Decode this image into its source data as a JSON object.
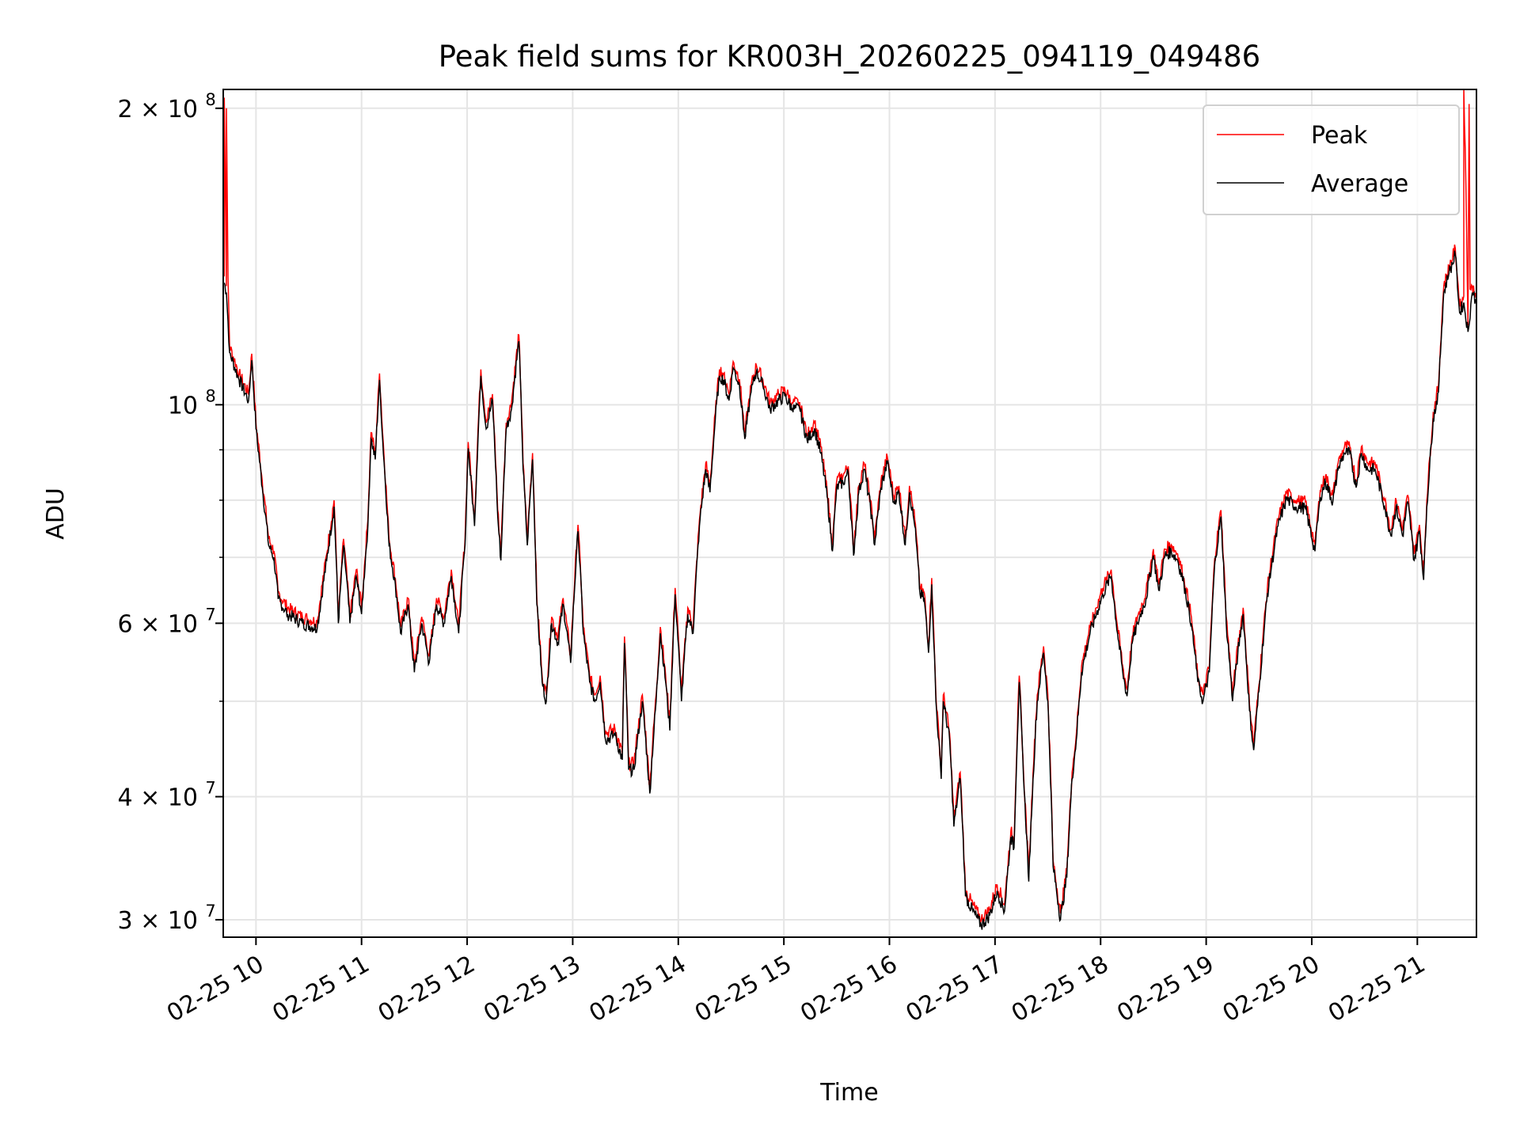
{
  "chart_data": {
    "type": "line",
    "title": "Peak field sums for KR003H_20260225_094119_049486",
    "xlabel": "Time",
    "ylabel": "ADU",
    "yscale": "log",
    "x_units": "hours on 2026-02-25",
    "y_units": "ADU (values listed in units of 1e7)",
    "xlim": [
      9.69,
      21.56
    ],
    "ylim": [
      28.8,
      209
    ],
    "grid": true,
    "legend_position": "top-right",
    "x_ticks": [
      {
        "value": 10,
        "label": "02-25 10"
      },
      {
        "value": 11,
        "label": "02-25 11"
      },
      {
        "value": 12,
        "label": "02-25 12"
      },
      {
        "value": 13,
        "label": "02-25 13"
      },
      {
        "value": 14,
        "label": "02-25 14"
      },
      {
        "value": 15,
        "label": "02-25 15"
      },
      {
        "value": 16,
        "label": "02-25 16"
      },
      {
        "value": 17,
        "label": "02-25 17"
      },
      {
        "value": 18,
        "label": "02-25 18"
      },
      {
        "value": 19,
        "label": "02-25 19"
      },
      {
        "value": 20,
        "label": "02-25 20"
      },
      {
        "value": 21,
        "label": "02-25 21"
      }
    ],
    "y_major_ticks": [
      {
        "value": 30,
        "mant": "3 × 10",
        "exp": "7"
      },
      {
        "value": 40,
        "mant": "4 × 10",
        "exp": "7"
      },
      {
        "value": 60,
        "mant": "6 × 10",
        "exp": "7"
      },
      {
        "value": 100,
        "mant": "10",
        "exp": "8"
      },
      {
        "value": 200,
        "mant": "2 × 10",
        "exp": "8"
      }
    ],
    "y_minor_ticks": [
      50,
      70,
      80,
      90
    ],
    "series": [
      {
        "name": "Peak",
        "color": "#ff0000",
        "derived_from": "Average",
        "factor": 1.015,
        "overrides": [
          [
            9.7,
            205
          ],
          [
            9.72,
            200
          ],
          [
            9.735,
            135
          ],
          [
            21.435,
            128
          ],
          [
            21.44,
            210
          ],
          [
            21.49,
            202
          ],
          [
            21.5,
            131
          ]
        ]
      },
      {
        "name": "Average",
        "color": "#000000",
        "points": [
          [
            9.7,
            133
          ],
          [
            9.72,
            130
          ],
          [
            9.75,
            113
          ],
          [
            9.84,
            106
          ],
          [
            9.93,
            101
          ],
          [
            9.96,
            111
          ],
          [
            10.0,
            94.5
          ],
          [
            10.06,
            82.4
          ],
          [
            10.12,
            72
          ],
          [
            10.17,
            70
          ],
          [
            10.21,
            63.5
          ],
          [
            10.3,
            61.3
          ],
          [
            10.44,
            60
          ],
          [
            10.58,
            59.3
          ],
          [
            10.67,
            69.5
          ],
          [
            10.74,
            78.8
          ],
          [
            10.78,
            60
          ],
          [
            10.83,
            72
          ],
          [
            10.89,
            60
          ],
          [
            10.95,
            67
          ],
          [
            11.0,
            61.3
          ],
          [
            11.06,
            75.3
          ],
          [
            11.09,
            92.3
          ],
          [
            11.13,
            88
          ],
          [
            11.17,
            106
          ],
          [
            11.2,
            92
          ],
          [
            11.26,
            72
          ],
          [
            11.32,
            65.7
          ],
          [
            11.37,
            58.6
          ],
          [
            11.44,
            62.7
          ],
          [
            11.5,
            53.5
          ],
          [
            11.57,
            60
          ],
          [
            11.64,
            54.7
          ],
          [
            11.71,
            62.7
          ],
          [
            11.78,
            60
          ],
          [
            11.85,
            67
          ],
          [
            11.92,
            58.6
          ],
          [
            11.98,
            72
          ],
          [
            12.01,
            90.3
          ],
          [
            12.07,
            75.3
          ],
          [
            12.13,
            107
          ],
          [
            12.18,
            94.5
          ],
          [
            12.24,
            101
          ],
          [
            12.29,
            77
          ],
          [
            12.32,
            69.5
          ],
          [
            12.37,
            94.5
          ],
          [
            12.42,
            99
          ],
          [
            12.49,
            116
          ],
          [
            12.53,
            86
          ],
          [
            12.57,
            72
          ],
          [
            12.62,
            88
          ],
          [
            12.66,
            62.7
          ],
          [
            12.71,
            52.3
          ],
          [
            12.75,
            50
          ],
          [
            12.8,
            60
          ],
          [
            12.86,
            57.3
          ],
          [
            12.91,
            62.7
          ],
          [
            12.98,
            54.7
          ],
          [
            13.05,
            74.4
          ],
          [
            13.1,
            58.6
          ],
          [
            13.16,
            52.3
          ],
          [
            13.21,
            50
          ],
          [
            13.26,
            52.3
          ],
          [
            13.31,
            45.7
          ],
          [
            13.4,
            46.2
          ],
          [
            13.47,
            43.6
          ],
          [
            13.49,
            57.3
          ],
          [
            13.53,
            42.6
          ],
          [
            13.58,
            42.6
          ],
          [
            13.66,
            50
          ],
          [
            13.73,
            40.3
          ],
          [
            13.79,
            50
          ],
          [
            13.83,
            58.6
          ],
          [
            13.88,
            52.3
          ],
          [
            13.92,
            46.7
          ],
          [
            13.97,
            64.2
          ],
          [
            14.03,
            50
          ],
          [
            14.09,
            61.3
          ],
          [
            14.14,
            58.6
          ],
          [
            14.2,
            75.3
          ],
          [
            14.26,
            86
          ],
          [
            14.3,
            81.5
          ],
          [
            14.35,
            96.6
          ],
          [
            14.39,
            107
          ],
          [
            14.43,
            106
          ],
          [
            14.48,
            101
          ],
          [
            14.52,
            109
          ],
          [
            14.58,
            104.6
          ],
          [
            14.63,
            92.3
          ],
          [
            14.69,
            103
          ],
          [
            14.74,
            108
          ],
          [
            14.8,
            104.6
          ],
          [
            14.87,
            99
          ],
          [
            14.95,
            101
          ],
          [
            15.01,
            102
          ],
          [
            15.08,
            99
          ],
          [
            15.15,
            99
          ],
          [
            15.22,
            92
          ],
          [
            15.29,
            94.5
          ],
          [
            15.35,
            89.3
          ],
          [
            15.41,
            80.6
          ],
          [
            15.46,
            71
          ],
          [
            15.5,
            82.4
          ],
          [
            15.56,
            83.4
          ],
          [
            15.61,
            85.3
          ],
          [
            15.66,
            70.3
          ],
          [
            15.71,
            81.5
          ],
          [
            15.76,
            86
          ],
          [
            15.82,
            78.8
          ],
          [
            15.86,
            72
          ],
          [
            15.92,
            82.4
          ],
          [
            15.98,
            87.3
          ],
          [
            16.04,
            79.7
          ],
          [
            16.09,
            81.5
          ],
          [
            16.15,
            72
          ],
          [
            16.19,
            81.5
          ],
          [
            16.24,
            75.3
          ],
          [
            16.29,
            64.2
          ],
          [
            16.33,
            63.5
          ],
          [
            16.37,
            56
          ],
          [
            16.4,
            65.7
          ],
          [
            16.44,
            50
          ],
          [
            16.49,
            41.7
          ],
          [
            16.51,
            50
          ],
          [
            16.57,
            45.7
          ],
          [
            16.61,
            37.3
          ],
          [
            16.67,
            41.7
          ],
          [
            16.72,
            31.7
          ],
          [
            16.79,
            30.6
          ],
          [
            16.87,
            29.6
          ],
          [
            16.95,
            30.3
          ],
          [
            17.02,
            32.1
          ],
          [
            17.09,
            30.6
          ],
          [
            17.15,
            36.4
          ],
          [
            17.18,
            35.5
          ],
          [
            17.23,
            52.3
          ],
          [
            17.27,
            41.7
          ],
          [
            17.32,
            32.8
          ],
          [
            17.36,
            41.7
          ],
          [
            17.4,
            50
          ],
          [
            17.46,
            56
          ],
          [
            17.5,
            50
          ],
          [
            17.55,
            34
          ],
          [
            17.62,
            30
          ],
          [
            17.68,
            33.2
          ],
          [
            17.73,
            41.7
          ],
          [
            17.77,
            45.7
          ],
          [
            17.82,
            53.5
          ],
          [
            17.9,
            58.6
          ],
          [
            17.96,
            61.3
          ],
          [
            18.02,
            64.2
          ],
          [
            18.1,
            67
          ],
          [
            18.16,
            58.6
          ],
          [
            18.21,
            53.5
          ],
          [
            18.25,
            50.6
          ],
          [
            18.3,
            57.3
          ],
          [
            18.35,
            60
          ],
          [
            18.43,
            63.5
          ],
          [
            18.5,
            70.3
          ],
          [
            18.55,
            64.8
          ],
          [
            18.61,
            70.3
          ],
          [
            18.67,
            71
          ],
          [
            18.73,
            69.5
          ],
          [
            18.79,
            65.7
          ],
          [
            18.86,
            60
          ],
          [
            18.92,
            52.3
          ],
          [
            18.97,
            50
          ],
          [
            19.03,
            53.5
          ],
          [
            19.08,
            68.7
          ],
          [
            19.14,
            77
          ],
          [
            19.19,
            60
          ],
          [
            19.25,
            50
          ],
          [
            19.3,
            56
          ],
          [
            19.35,
            61.3
          ],
          [
            19.41,
            48.9
          ],
          [
            19.45,
            44.6
          ],
          [
            19.5,
            51.2
          ],
          [
            19.58,
            64.2
          ],
          [
            19.62,
            68.7
          ],
          [
            19.68,
            75.3
          ],
          [
            19.76,
            80.2
          ],
          [
            19.85,
            78.8
          ],
          [
            19.94,
            78.5
          ],
          [
            20.03,
            71
          ],
          [
            20.08,
            80.6
          ],
          [
            20.13,
            83.4
          ],
          [
            20.2,
            79.7
          ],
          [
            20.25,
            86
          ],
          [
            20.31,
            89.3
          ],
          [
            20.36,
            89.3
          ],
          [
            20.42,
            82.4
          ],
          [
            20.47,
            89.3
          ],
          [
            20.53,
            86
          ],
          [
            20.6,
            86
          ],
          [
            20.69,
            78.8
          ],
          [
            20.75,
            73.6
          ],
          [
            20.8,
            78.8
          ],
          [
            20.86,
            73.6
          ],
          [
            20.91,
            79.7
          ],
          [
            20.97,
            69.5
          ],
          [
            21.02,
            74.4
          ],
          [
            21.06,
            66.4
          ],
          [
            21.09,
            78.8
          ],
          [
            21.15,
            96.6
          ],
          [
            21.2,
            103
          ],
          [
            21.25,
            130
          ],
          [
            21.3,
            136
          ],
          [
            21.36,
            142
          ],
          [
            21.4,
            124
          ],
          [
            21.44,
            127
          ],
          [
            21.48,
            118.6
          ],
          [
            21.52,
            130
          ],
          [
            21.55,
            128
          ]
        ]
      }
    ]
  }
}
